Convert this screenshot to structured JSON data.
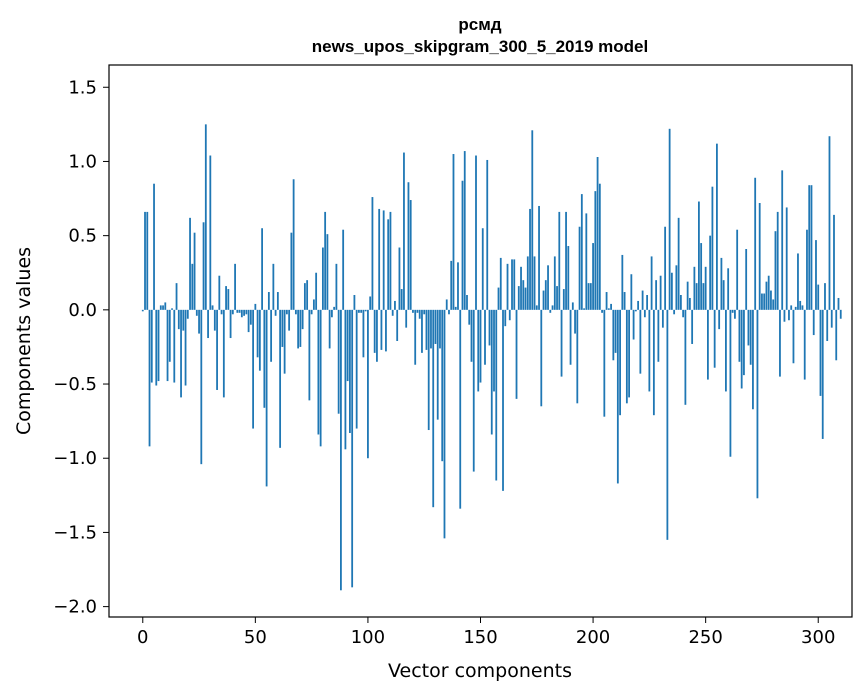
{
  "chart_data": {
    "type": "bar",
    "title_line1": "рсмд",
    "title_line2": "news_upos_skipgram_300_5_2019 model",
    "xlabel": "Vector components",
    "ylabel": "Components values",
    "xlim": [
      -15,
      315
    ],
    "ylim": [
      -2.07,
      1.65
    ],
    "xticks": [
      {
        "value": 0,
        "label": "0"
      },
      {
        "value": 50,
        "label": "50"
      },
      {
        "value": 100,
        "label": "100"
      },
      {
        "value": 150,
        "label": "150"
      },
      {
        "value": 200,
        "label": "200"
      },
      {
        "value": 250,
        "label": "250"
      },
      {
        "value": 300,
        "label": "300"
      }
    ],
    "yticks": [
      {
        "value": 1.5,
        "label": "1.5"
      },
      {
        "value": 1.0,
        "label": "1.0"
      },
      {
        "value": 0.5,
        "label": "0.5"
      },
      {
        "value": 0.0,
        "label": "0.0"
      },
      {
        "value": -0.5,
        "label": "−0.5"
      },
      {
        "value": -1.0,
        "label": "−1.0"
      },
      {
        "value": -1.5,
        "label": "−1.5"
      },
      {
        "value": -2.0,
        "label": "−2.0"
      }
    ],
    "color": "#1f77b4",
    "values": [
      -0.01,
      0.66,
      0.66,
      -0.92,
      -0.49,
      0.85,
      -0.51,
      -0.48,
      0.03,
      0.03,
      0.05,
      -0.48,
      -0.35,
      0.01,
      -0.49,
      0.18,
      -0.13,
      -0.59,
      -0.14,
      -0.51,
      -0.06,
      0.62,
      0.31,
      0.52,
      -0.04,
      -0.16,
      -1.04,
      0.59,
      1.25,
      -0.19,
      1.04,
      0.03,
      -0.14,
      -0.54,
      0.23,
      -0.03,
      -0.59,
      0.16,
      0.14,
      -0.19,
      -0.03,
      0.31,
      -0.02,
      -0.02,
      -0.05,
      -0.04,
      -0.03,
      -0.15,
      -0.1,
      -0.8,
      0.04,
      -0.32,
      -0.41,
      0.55,
      -0.66,
      -1.19,
      0.12,
      -0.35,
      0.31,
      -0.04,
      0.12,
      -0.93,
      -0.25,
      -0.43,
      -0.03,
      -0.14,
      0.52,
      0.88,
      -0.03,
      -0.26,
      -0.25,
      -0.13,
      0.18,
      0.2,
      -0.61,
      -0.03,
      0.07,
      0.25,
      -0.84,
      -0.92,
      0.42,
      0.66,
      0.51,
      -0.26,
      -0.05,
      0.02,
      0.31,
      -0.7,
      -1.89,
      0.54,
      -0.94,
      -0.48,
      -0.83,
      -1.87,
      0.1,
      -0.8,
      -0.02,
      -0.02,
      -0.32,
      -0.01,
      -1.0,
      0.09,
      0.76,
      -0.29,
      -0.35,
      0.68,
      -0.27,
      0.67,
      -0.28,
      0.61,
      0.66,
      -0.04,
      0.06,
      -0.21,
      0.42,
      0.14,
      1.06,
      -0.12,
      0.86,
      0.74,
      -0.02,
      -0.37,
      -0.02,
      -0.06,
      -0.29,
      -0.03,
      -0.27,
      -0.81,
      -0.26,
      -1.33,
      -0.23,
      -0.74,
      -0.26,
      -1.02,
      -1.54,
      0.07,
      -0.03,
      0.33,
      1.05,
      0.02,
      0.32,
      -1.34,
      0.87,
      1.07,
      0.1,
      -0.1,
      -0.35,
      -1.09,
      1.04,
      -0.55,
      -0.49,
      0.55,
      -0.37,
      1.01,
      -0.24,
      -0.84,
      -0.55,
      -1.15,
      0.15,
      0.35,
      -1.22,
      -0.11,
      0.31,
      -0.07,
      0.34,
      0.34,
      -0.6,
      0.16,
      0.29,
      0.2,
      0.15,
      0.36,
      0.68,
      1.21,
      0.36,
      0.03,
      0.7,
      -0.65,
      0.13,
      0.2,
      0.3,
      -0.02,
      0.03,
      0.36,
      0.16,
      0.66,
      -0.45,
      0.14,
      0.66,
      0.43,
      -0.37,
      0.05,
      -0.16,
      -0.63,
      0.56,
      0.78,
      0.01,
      0.65,
      0.18,
      0.18,
      0.45,
      0.8,
      1.03,
      0.85,
      -0.02,
      -0.72,
      0.12,
      0.01,
      0.04,
      -0.34,
      -0.29,
      -1.17,
      -0.71,
      0.37,
      0.12,
      -0.63,
      -0.59,
      0.24,
      -0.2,
      -0.01,
      0.06,
      -0.43,
      0.13,
      -0.05,
      0.1,
      -0.55,
      0.36,
      -0.71,
      0.2,
      -0.35,
      0.23,
      -0.12,
      0.56,
      -1.55,
      1.22,
      0.25,
      -0.03,
      0.3,
      0.62,
      0.1,
      -0.05,
      -0.64,
      0.19,
      0.08,
      -0.23,
      0.29,
      0.18,
      0.73,
      0.45,
      0.18,
      0.29,
      -0.47,
      0.5,
      0.83,
      -0.39,
      1.12,
      -0.13,
      0.35,
      0.2,
      -0.55,
      0.28,
      -0.99,
      -0.02,
      -0.06,
      0.54,
      -0.35,
      -0.53,
      -0.44,
      0.41,
      -0.24,
      -0.37,
      -0.67,
      0.89,
      -1.27,
      0.72,
      0.11,
      0.11,
      0.19,
      0.23,
      0.13,
      0.07,
      0.53,
      0.66,
      -0.45,
      0.94,
      -0.08,
      0.69,
      -0.07,
      0.03,
      -0.36,
      0.02,
      0.38,
      0.06,
      0.03,
      -0.47,
      0.54,
      0.84,
      0.84,
      -0.17,
      0.47,
      0.17,
      -0.58,
      -0.87,
      0.18,
      -0.21,
      1.17,
      -0.12,
      0.64,
      -0.34,
      0.08,
      -0.06
    ]
  }
}
